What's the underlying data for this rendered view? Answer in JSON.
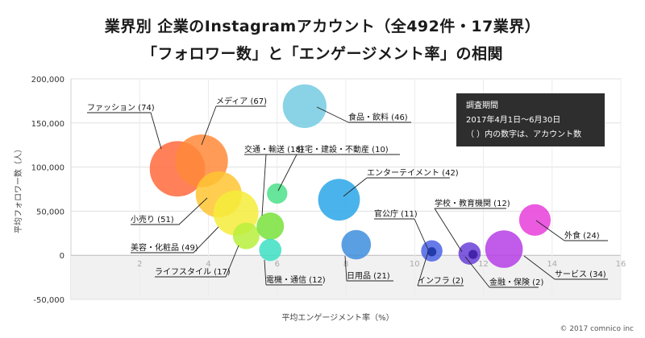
{
  "chart_data": {
    "type": "scatter",
    "title_line1": "業界別 企業のInstagramアカウント（全492件・17業界）",
    "title_line2": "「フォロワー数」と「エンゲージメント率」の相関",
    "xlabel": "平均エンゲージメント率（%）",
    "ylabel": "平均フォロワー数（人）",
    "xlim": [
      0,
      16
    ],
    "ylim": [
      -50000,
      200000
    ],
    "x_ticks": [
      2,
      4,
      6,
      8,
      10,
      12,
      14,
      16
    ],
    "y_ticks": [
      200000,
      150000,
      100000,
      50000,
      0,
      -50000
    ],
    "y_tick_labels": [
      "200,000",
      "150,000",
      "100,000",
      "50,000",
      "0",
      "-50,000"
    ],
    "note": {
      "heading": "調査期間",
      "line1": "2017年4月1日〜6月30日",
      "line2": "（ ）内の数字は、アカウント数"
    },
    "series": [
      {
        "label": "ファッション (74)",
        "x": 3.1,
        "y": 98000,
        "count": 74,
        "color": "#ff6a3c"
      },
      {
        "label": "メディア (67)",
        "x": 3.8,
        "y": 107000,
        "count": 67,
        "color": "#ff8a3a"
      },
      {
        "label": "小売り (51)",
        "x": 4.3,
        "y": 69000,
        "count": 51,
        "color": "#ffc431"
      },
      {
        "label": "美容・化粧品 (49)",
        "x": 4.8,
        "y": 48000,
        "count": 49,
        "color": "#f5ec3a"
      },
      {
        "label": "ライフスタイル (17)",
        "x": 5.1,
        "y": 22000,
        "count": 17,
        "color": "#b9ee3c"
      },
      {
        "label": "交通・輸送 (18)",
        "x": 5.8,
        "y": 33000,
        "count": 18,
        "color": "#78e23a"
      },
      {
        "label": "電機・通信 (12)",
        "x": 5.8,
        "y": 6000,
        "count": 12,
        "color": "#3ddfc3"
      },
      {
        "label": "住宅・建設・不動産 (10)",
        "x": 6.0,
        "y": 70000,
        "count": 10,
        "color": "#4be08a"
      },
      {
        "label": "食品・飲料 (46)",
        "x": 6.8,
        "y": 169000,
        "count": 46,
        "color": "#76cbe2"
      },
      {
        "label": "エンターテイメント (42)",
        "x": 7.8,
        "y": 63000,
        "count": 42,
        "color": "#2aa6e8"
      },
      {
        "label": "日用品 (21)",
        "x": 8.3,
        "y": 12000,
        "count": 21,
        "color": "#3e8ede"
      },
      {
        "label": "官公庁 (11)",
        "x": 10.5,
        "y": 5000,
        "count": 11,
        "color": "#4b63e6"
      },
      {
        "label": "インフラ (2)",
        "x": 10.5,
        "y": 4000,
        "count": 2,
        "color": "#17309a"
      },
      {
        "label": "学校・教育機関 (12)",
        "x": 11.6,
        "y": 2000,
        "count": 12,
        "color": "#6a40d8"
      },
      {
        "label": "金融・保険 (2)",
        "x": 11.7,
        "y": 1000,
        "count": 2,
        "color": "#3a1aa0"
      },
      {
        "label": "サービス (34)",
        "x": 12.6,
        "y": 7000,
        "count": 34,
        "color": "#b63ee6"
      },
      {
        "label": "外食 (24)",
        "x": 13.5,
        "y": 40000,
        "count": 24,
        "color": "#e63ed9"
      }
    ]
  },
  "copyright": "© 2017 comnico inc"
}
